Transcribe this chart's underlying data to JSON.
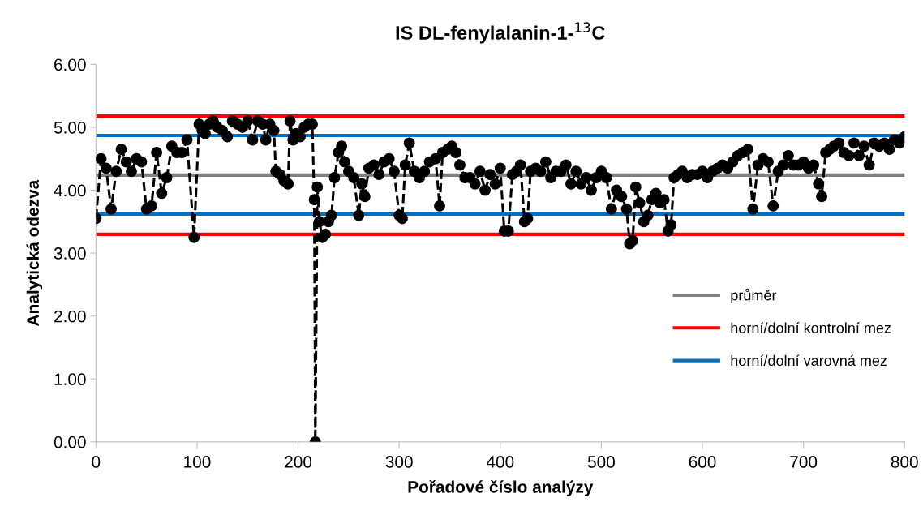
{
  "chart_data": {
    "type": "line",
    "title": "IS DL-fenylalanin-1-$^{13}$C",
    "xlabel": "Pořadové číslo analýzy",
    "ylabel": "Analytická odezva",
    "xlim": [
      0,
      800
    ],
    "xticks": [
      0,
      100,
      200,
      300,
      400,
      500,
      600,
      700,
      800
    ],
    "ylim": [
      0,
      6
    ],
    "yticks": [
      {
        "value": 0,
        "label": "0.00"
      },
      {
        "value": 1,
        "label": "1.00"
      },
      {
        "value": 2,
        "label": "2.00"
      },
      {
        "value": 3,
        "label": "3.00"
      },
      {
        "value": 4,
        "label": "4.00"
      },
      {
        "value": 5,
        "label": "5.00"
      },
      {
        "value": 6,
        "label": "6.00"
      }
    ],
    "grid": false,
    "legend": "right",
    "marker": "circle",
    "line_style": "dashed",
    "series": [
      {
        "color": "#000000",
        "x": [
          0,
          5,
          10,
          15,
          20,
          25,
          30,
          35,
          40,
          45,
          50,
          55,
          60,
          65,
          70,
          75,
          80,
          85,
          90,
          97,
          102,
          105,
          108,
          112,
          116,
          120,
          125,
          130,
          135,
          140,
          145,
          150,
          155,
          160,
          165,
          168,
          172,
          176,
          178,
          182,
          186,
          190,
          192,
          195,
          198,
          202,
          206,
          210,
          214,
          216,
          217,
          219,
          221,
          224,
          227,
          230,
          233,
          236,
          240,
          243,
          246,
          250,
          255,
          260,
          263,
          266,
          270,
          275,
          280,
          285,
          290,
          295,
          300,
          303,
          306,
          310,
          315,
          320,
          325,
          330,
          336,
          340,
          343,
          348,
          352,
          356,
          360,
          365,
          370,
          375,
          380,
          385,
          390,
          395,
          400,
          404,
          408,
          412,
          416,
          420,
          424,
          427,
          430,
          435,
          440,
          445,
          450,
          455,
          460,
          465,
          470,
          475,
          480,
          485,
          490,
          495,
          500,
          505,
          510,
          515,
          520,
          525,
          528,
          531,
          534,
          538,
          542,
          546,
          550,
          554,
          558,
          562,
          566,
          569,
          572,
          576,
          580,
          585,
          590,
          595,
          600,
          605,
          610,
          615,
          620,
          625,
          630,
          635,
          640,
          645,
          650,
          655,
          660,
          665,
          670,
          675,
          680,
          685,
          690,
          695,
          700,
          705,
          710,
          715,
          718,
          722,
          726,
          730,
          735,
          740,
          745,
          750,
          755,
          760,
          765,
          770,
          775,
          780,
          785,
          790,
          795,
          800
        ],
        "values": [
          3.55,
          4.5,
          4.35,
          3.7,
          4.3,
          4.65,
          4.45,
          4.3,
          4.5,
          4.45,
          3.7,
          3.75,
          4.6,
          3.95,
          4.2,
          4.7,
          4.6,
          4.6,
          4.8,
          3.25,
          5.05,
          4.95,
          4.9,
          5.05,
          5.1,
          5.0,
          4.95,
          4.85,
          5.1,
          5.05,
          5.0,
          5.1,
          4.8,
          5.1,
          5.05,
          4.8,
          5.05,
          4.95,
          4.3,
          4.25,
          4.15,
          4.1,
          5.1,
          4.8,
          4.9,
          4.85,
          5.0,
          5.05,
          5.05,
          3.85,
          0.0,
          4.05,
          3.5,
          3.25,
          3.3,
          3.5,
          3.6,
          4.2,
          4.6,
          4.7,
          4.45,
          4.3,
          4.2,
          3.6,
          4.1,
          3.9,
          4.35,
          4.4,
          4.25,
          4.45,
          4.5,
          4.3,
          3.6,
          3.55,
          4.4,
          4.75,
          4.3,
          4.2,
          4.3,
          4.45,
          4.5,
          3.75,
          4.6,
          4.65,
          4.7,
          4.6,
          4.4,
          4.2,
          4.2,
          4.1,
          4.3,
          4.0,
          4.25,
          4.1,
          4.35,
          3.35,
          3.35,
          4.25,
          4.3,
          4.4,
          3.5,
          3.55,
          4.3,
          4.35,
          4.3,
          4.45,
          4.2,
          4.3,
          4.3,
          4.4,
          4.1,
          4.3,
          4.1,
          4.2,
          4.0,
          4.2,
          4.3,
          4.2,
          3.7,
          4.0,
          3.9,
          3.7,
          3.15,
          3.2,
          4.05,
          3.8,
          3.5,
          3.6,
          3.85,
          3.95,
          3.8,
          3.85,
          3.35,
          3.45,
          4.2,
          4.25,
          4.3,
          4.2,
          4.25,
          4.25,
          4.3,
          4.2,
          4.3,
          4.35,
          4.4,
          4.35,
          4.45,
          4.55,
          4.6,
          4.65,
          3.7,
          4.4,
          4.5,
          4.45,
          3.75,
          4.3,
          4.4,
          4.55,
          4.4,
          4.4,
          4.45,
          4.35,
          4.4,
          4.1,
          3.9,
          4.6,
          4.65,
          4.7,
          4.75,
          4.6,
          4.55,
          4.75,
          4.55,
          4.7,
          4.4,
          4.75,
          4.7,
          4.75,
          4.65,
          4.8,
          4.75,
          4.85
        ]
      }
    ],
    "ref_lines": [
      {
        "axis": "y",
        "value": 4.24,
        "label": "průměr",
        "color": "#808080"
      },
      {
        "axis": "y",
        "value": 5.18,
        "label": "horní/dolní kontrolní mez",
        "color": "#ff0000"
      },
      {
        "axis": "y",
        "value": 3.3,
        "color": "#ff0000"
      },
      {
        "axis": "y",
        "value": 4.87,
        "label": "horní/dolní varovná mez",
        "color": "#0070c0"
      },
      {
        "axis": "y",
        "value": 3.62,
        "color": "#0070c0"
      }
    ]
  }
}
